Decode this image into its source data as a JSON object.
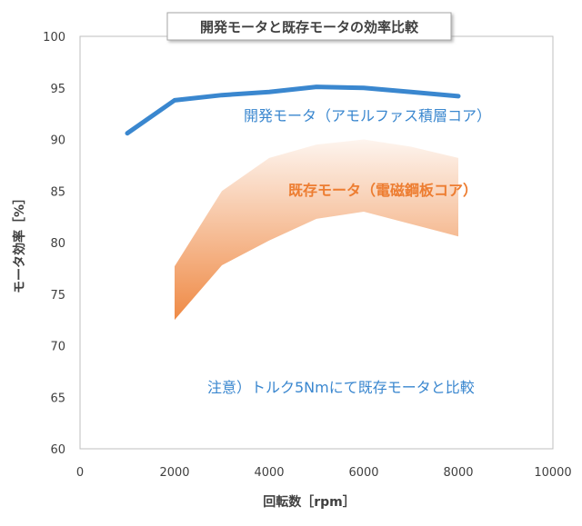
{
  "chart_data": {
    "type": "line",
    "title": "開発モータと既存モータの効率比較",
    "xlabel": "回転数［rpm］",
    "ylabel": "モータ効率［%］",
    "xlim": [
      0,
      10000
    ],
    "ylim": [
      60,
      100
    ],
    "xticks": [
      "0",
      "2000",
      "4000",
      "6000",
      "8000",
      "10000"
    ],
    "yticks": [
      "60",
      "65",
      "70",
      "75",
      "80",
      "85",
      "90",
      "95",
      "100"
    ],
    "grid": false,
    "series": [
      {
        "name": "開発モータ（アモルファス積層コア）",
        "color": "#3a87cf",
        "x": [
          1000,
          2000,
          3000,
          4000,
          5000,
          6000,
          7000,
          8000
        ],
        "y": [
          90.6,
          93.8,
          94.3,
          94.6,
          95.1,
          95.0,
          94.6,
          94.2
        ]
      },
      {
        "name": "既存モータ（電磁鋼板コア）",
        "color": "#ed7d31",
        "kind": "band",
        "x": [
          2000,
          3000,
          4000,
          5000,
          6000,
          7000,
          8000
        ],
        "upper": [
          77.7,
          85.0,
          88.2,
          89.5,
          90.0,
          89.3,
          88.2
        ],
        "lower": [
          72.5,
          77.8,
          80.2,
          82.3,
          83.0,
          81.8,
          80.6
        ]
      }
    ],
    "annotation": "注意）トルク5Nmにて既存モータと比較"
  }
}
